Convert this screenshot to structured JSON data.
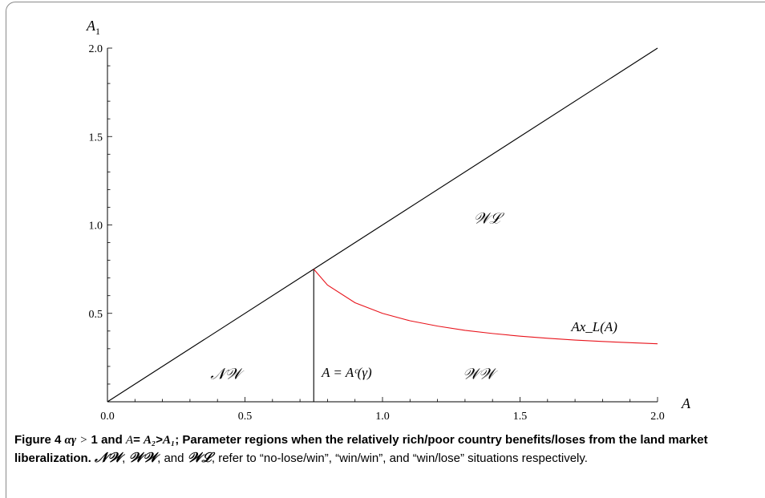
{
  "chart_data": {
    "type": "line",
    "title": "",
    "xlabel": "A",
    "ylabel": "A₁",
    "xlim": [
      0.0,
      2.0
    ],
    "ylim": [
      0.0,
      2.0
    ],
    "xticks": [
      "0.0",
      "0.5",
      "1.0",
      "1.5",
      "2.0"
    ],
    "yticks": [
      "0.5",
      "1.0",
      "1.5",
      "2.0"
    ],
    "grid": false,
    "series": [
      {
        "name": "",
        "color": "#000000",
        "x": [
          0.0,
          2.0
        ],
        "y": [
          0.0,
          2.0
        ]
      },
      {
        "name": "",
        "color": "#000000",
        "x": [
          0.75,
          0.75
        ],
        "y": [
          0.0,
          0.75
        ]
      },
      {
        "name": "Ax_L(A)",
        "color": "#e8141c",
        "x": [
          0.75,
          0.8,
          0.9,
          1.0,
          1.1,
          1.2,
          1.3,
          1.4,
          1.5,
          1.6,
          1.7,
          1.8,
          1.9,
          2.0
        ],
        "y": [
          0.75,
          0.66,
          0.56,
          0.5,
          0.458,
          0.428,
          0.404,
          0.386,
          0.371,
          0.359,
          0.349,
          0.341,
          0.334,
          0.328
        ]
      }
    ],
    "annotations": [
      {
        "text": "𝒩𝒲",
        "x": 0.43,
        "y": 0.13
      },
      {
        "text": "A = Aᶜ(γ)",
        "x": 0.87,
        "y": 0.14
      },
      {
        "text": "𝒲𝒲",
        "x": 1.35,
        "y": 0.13
      },
      {
        "text": "𝒲ℒ",
        "x": 1.38,
        "y": 1.01
      },
      {
        "text": "Ax_L(A)",
        "x": 1.77,
        "y": 0.4
      }
    ]
  },
  "caption": {
    "fig_no": "Figure 4",
    "cond_alpha_gamma": "αγ",
    "cond_gt": ">",
    "cond_one": "1",
    "cond_and": "and",
    "cond_A": "A",
    "cond_eq": "=",
    "cond_A2": "A₂",
    "cond_gt2": ">",
    "cond_A1": "A₁",
    "cond_semicolon": ";",
    "bold_text": "Parameter regions when the relatively rich/poor country benefits/loses from the land market liberalization.",
    "nw": "𝒩𝒲",
    "comma1": ",",
    "ww": "𝒲𝒲",
    "comma_and": ", and",
    "wl": "𝒲ℒ",
    "rest": ", refer to “no-lose/win”, “win/win”, and “win/lose” situations respectively."
  }
}
